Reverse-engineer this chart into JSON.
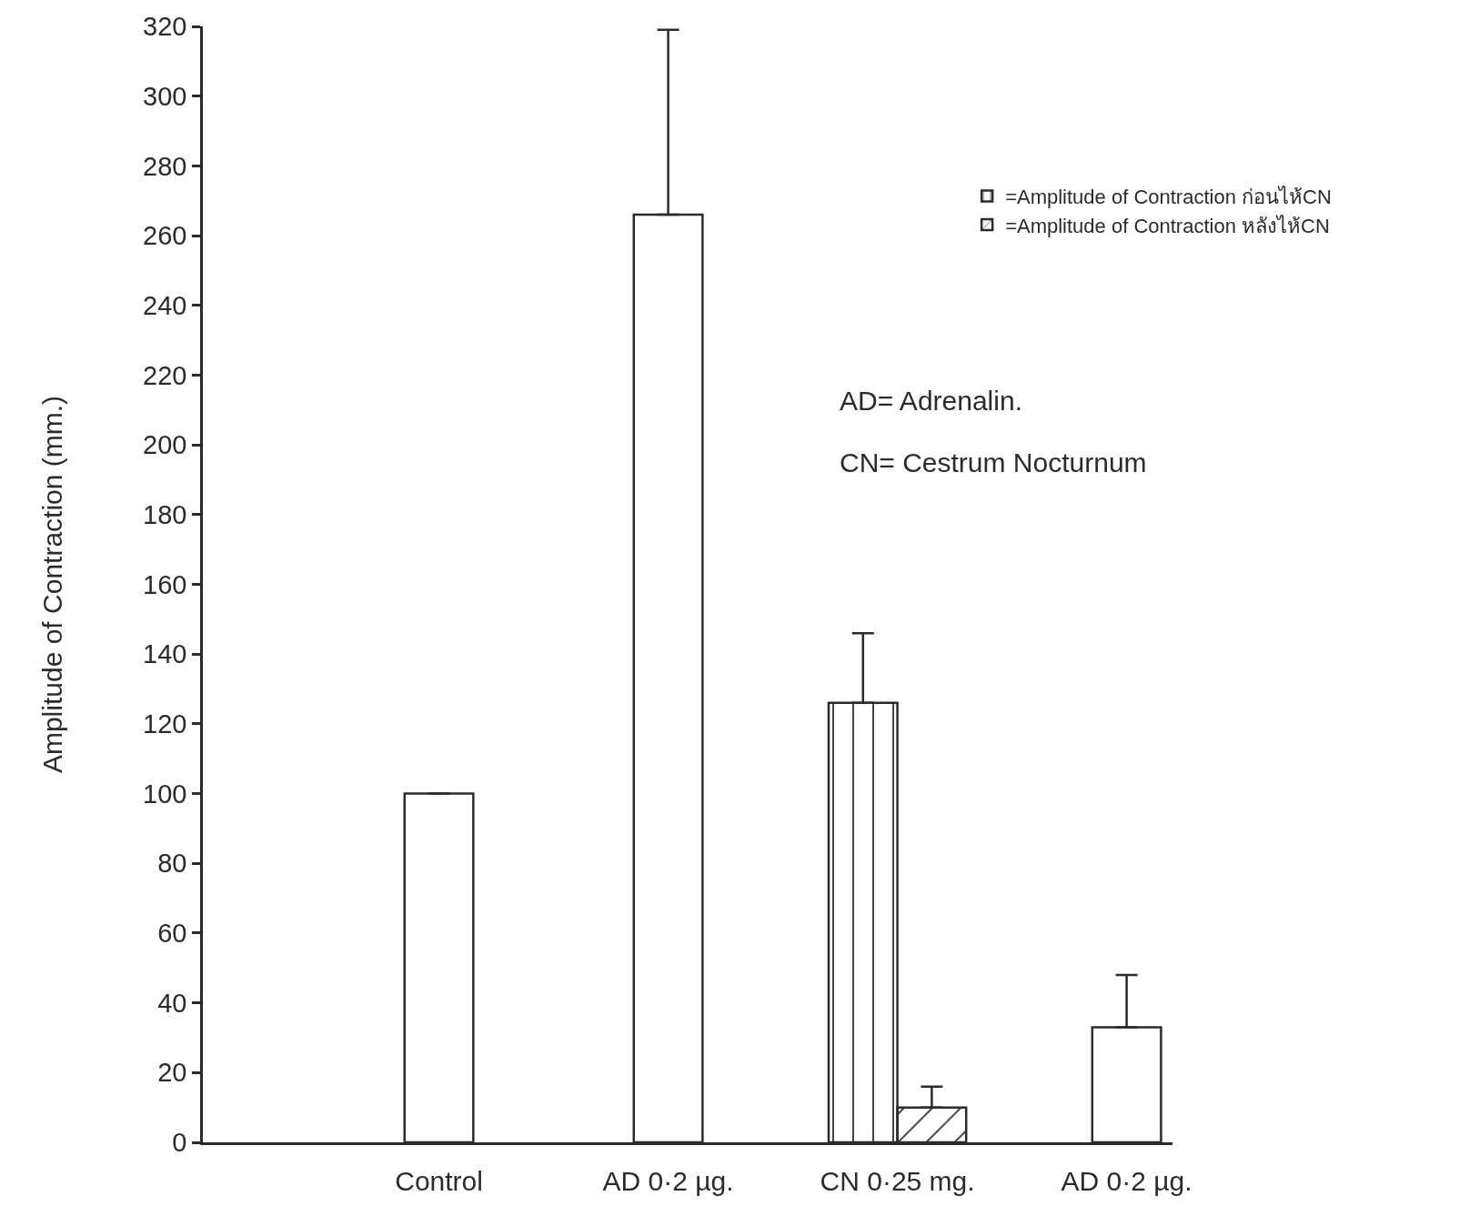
{
  "chart_data": {
    "type": "bar",
    "ylabel": "Amplitude of Contraction (mm.)",
    "categories": [
      "Control",
      "AD 0·2 µg.",
      "CN 0·25 mg.",
      "AD 0·2 µg."
    ],
    "series": [
      {
        "name": "=Amplitude of Contraction ก่อนไห้CN",
        "color": "#2b2b2b",
        "values": [
          null,
          null,
          126,
          null
        ],
        "errors": [
          null,
          null,
          [
            126,
            146
          ],
          null
        ]
      },
      {
        "name": "=Amplitude of Contraction หลังไห้CN",
        "color": "#2b2b2b",
        "values": [
          null,
          null,
          10,
          null
        ],
        "errors": [
          null,
          null,
          [
            10,
            16
          ],
          null
        ]
      },
      {
        "color": "#ffffff",
        "values": [
          100,
          266,
          null,
          33
        ],
        "errors": [
          null,
          [
            266,
            319
          ],
          null,
          [
            33,
            48
          ]
        ]
      }
    ],
    "ylim": [
      0,
      320
    ],
    "yticks": [
      0,
      20,
      40,
      60,
      80,
      100,
      120,
      140,
      160,
      180,
      200,
      220,
      240,
      260,
      280,
      300,
      320
    ],
    "annotations": [
      "AD= Adrenalin.",
      "CN= Cestrum Nocturnum"
    ],
    "grid": false,
    "legend": "top right"
  }
}
